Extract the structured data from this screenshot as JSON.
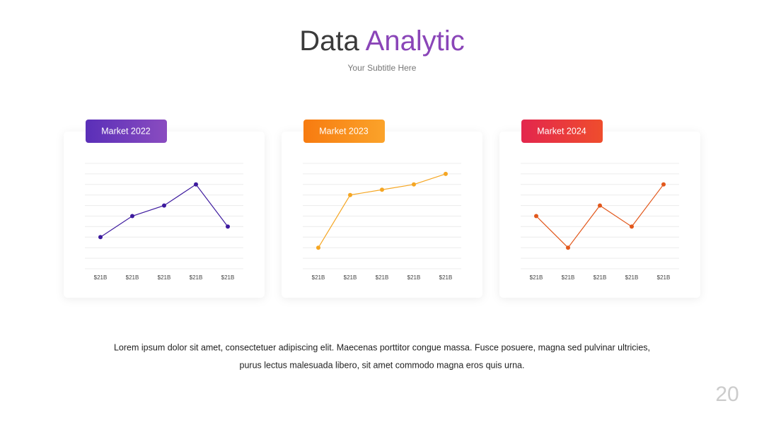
{
  "header": {
    "title": [
      "Data",
      "Analytic"
    ],
    "subtitle": "Your Subtitle Here"
  },
  "chart_data": [
    {
      "type": "line",
      "title": "Market 2022",
      "badge_colors": [
        "#5a2fb8",
        "#8a4cc0"
      ],
      "color": "#3d1a9e",
      "categories": [
        "$21B",
        "$21B",
        "$21B",
        "$21B",
        "$21B"
      ],
      "values": [
        3,
        5,
        6,
        8,
        4
      ],
      "ylim": [
        0,
        10
      ],
      "yticks": [
        0,
        1,
        2,
        3,
        4,
        5,
        6,
        7,
        8,
        9,
        10
      ],
      "grid": true
    },
    {
      "type": "line",
      "title": "Market 2023",
      "badge_colors": [
        "#f77b10",
        "#fba32a"
      ],
      "color": "#f5a623",
      "categories": [
        "$21B",
        "$21B",
        "$21B",
        "$21B",
        "$21B"
      ],
      "values": [
        2,
        7,
        7.5,
        8,
        9
      ],
      "ylim": [
        0,
        10
      ],
      "yticks": [
        0,
        1,
        2,
        3,
        4,
        5,
        6,
        7,
        8,
        9,
        10
      ],
      "grid": true
    },
    {
      "type": "line",
      "title": "Market 2024",
      "badge_colors": [
        "#e3264d",
        "#ef4d2d"
      ],
      "color": "#e2581c",
      "categories": [
        "$21B",
        "$21B",
        "$21B",
        "$21B",
        "$21B"
      ],
      "values": [
        5,
        2,
        6,
        4,
        8
      ],
      "ylim": [
        0,
        10
      ],
      "yticks": [
        0,
        1,
        2,
        3,
        4,
        5,
        6,
        7,
        8,
        9,
        10
      ],
      "grid": true
    }
  ],
  "body": [
    "Lorem ipsum dolor sit amet, consectetuer adipiscing elit. Maecenas porttitor congue massa. Fusce posuere, magna sed pulvinar ultricies,",
    "purus lectus malesuada libero, sit amet commodo magna eros quis urna."
  ],
  "page_number": "20"
}
